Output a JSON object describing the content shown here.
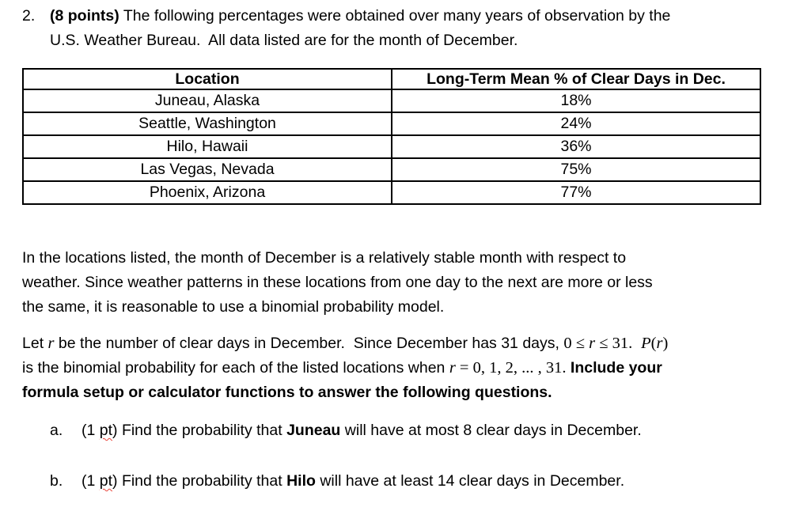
{
  "colors": {
    "text": "#000000",
    "table_border": "#000000",
    "spellcheck_underline": "#e8443a"
  },
  "problem": {
    "marker": "2.",
    "points_label": "(8 points)",
    "line1_rest": " The following percentages were obtained over many years of observation by the",
    "line2": "U.S. Weather Bureau.  All data listed are for the month of December."
  },
  "table": {
    "col1_header": "Location",
    "col2_header": "Long-Term Mean % of Clear Days in Dec.",
    "rows": [
      {
        "location": "Juneau, Alaska",
        "percent": "18%"
      },
      {
        "location": "Seattle, Washington",
        "percent": "24%"
      },
      {
        "location": "Hilo, Hawaii",
        "percent": "36%"
      },
      {
        "location": "Las Vegas, Nevada",
        "percent": "75%"
      },
      {
        "location": "Phoenix, Arizona",
        "percent": "77%"
      }
    ]
  },
  "paragraph1": {
    "line1": "In the locations listed, the month of December is a relatively stable month with respect to",
    "line2": "weather. Since weather patterns in these locations from one day to the next are more or less",
    "line3": "the same, it is reasonable to use a binomial probability model."
  },
  "paragraph2": {
    "l1_t1": "Let ",
    "l1_m1": "r",
    "l1_t2": " be the number of clear days in December.  Since December has 31 days, ",
    "l1_m2a": "0 ≤ ",
    "l1_m2b": "r",
    "l1_m2c": " ≤ 31.",
    "l1_t3": "  ",
    "l1_m3a": "P",
    "l1_m3b": "(",
    "l1_m3c": "r",
    "l1_m3d": ")",
    "l2_t1": "is the binomial probability for each of the listed locations when ",
    "l2_m1a": "r",
    "l2_m1b": " = 0, 1, 2, ... , 31.",
    "l2_t2": " ",
    "l2_bold": "Include your",
    "l3_bold": "formula setup or calculator functions to answer the following questions."
  },
  "questions": [
    {
      "marker": "a.",
      "pts_open": "(1 ",
      "pts_word": "pt",
      "pts_close": ") Find the probability that ",
      "city": "Juneau",
      "rest": " will have at most 8 clear days in December."
    },
    {
      "marker": "b.",
      "pts_open": "(1 ",
      "pts_word": "pt",
      "pts_close": ") Find the probability that ",
      "city": "Hilo",
      "rest": " will have at least 14 clear days in December."
    }
  ]
}
